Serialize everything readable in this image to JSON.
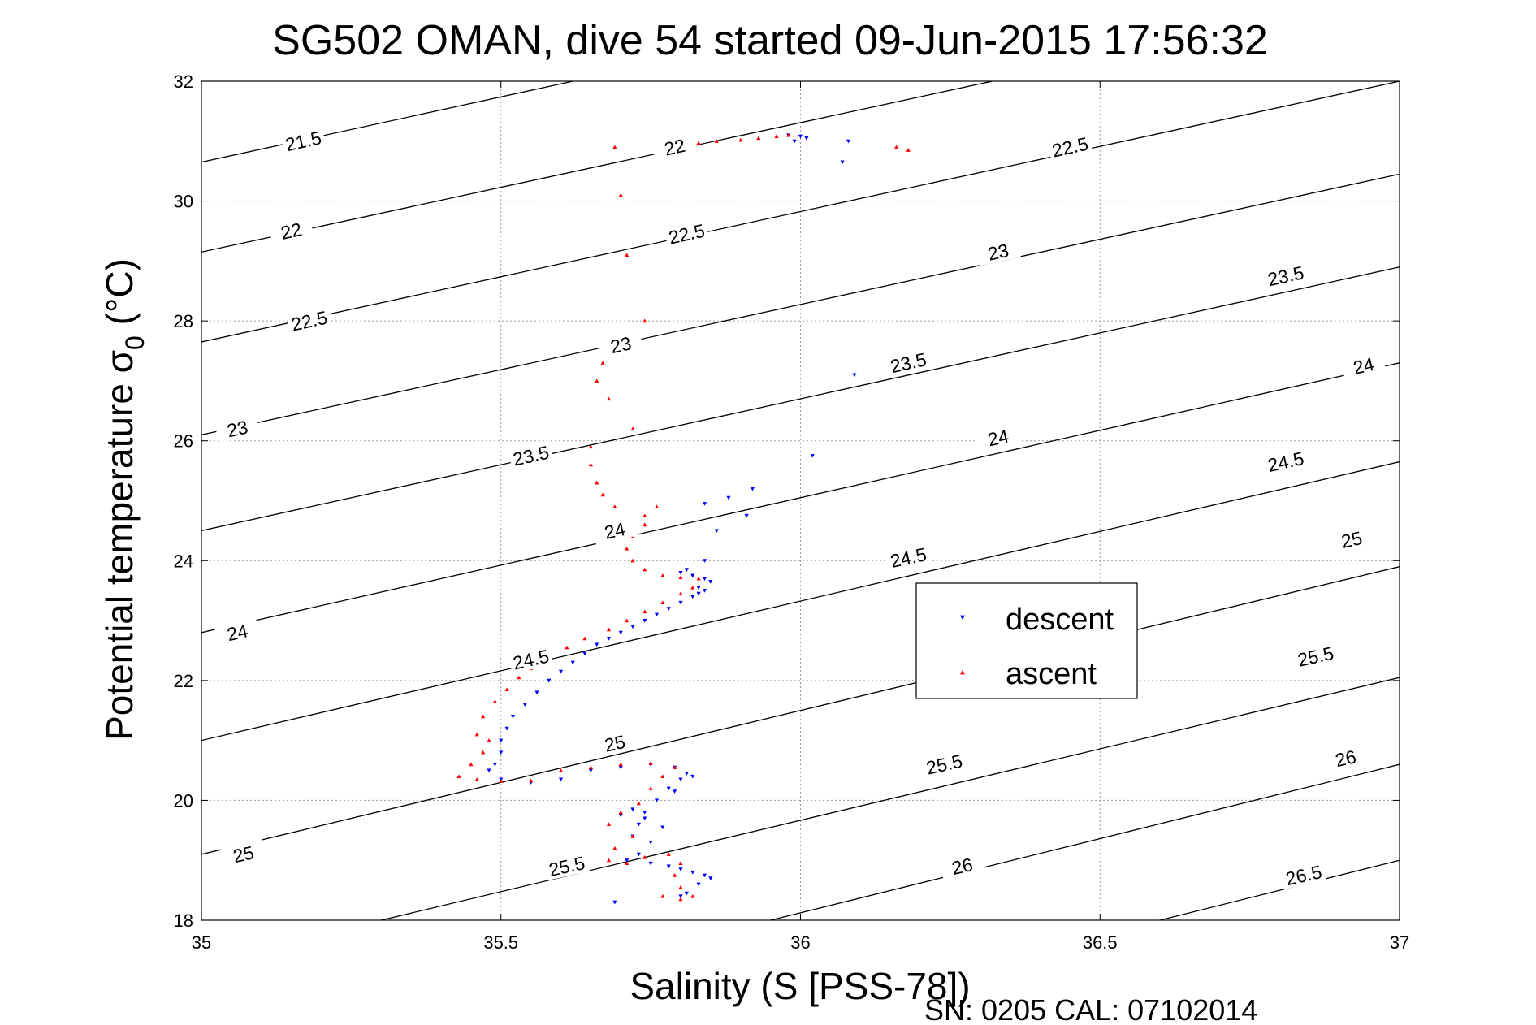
{
  "chart_data": {
    "type": "scatter",
    "title": "SG502 OMAN, dive 54 started 09-Jun-2015 17:56:32",
    "xlabel": "Salinity (S [PSS-78])",
    "ylabel_main": "Potential temperature σ",
    "ylabel_sub": "0",
    "ylabel_unit": "(°C)",
    "xlim": [
      35,
      37
    ],
    "ylim": [
      18,
      32
    ],
    "x_ticks": [
      "35",
      "35.5",
      "36",
      "36.5",
      "37"
    ],
    "y_ticks": [
      "18",
      "20",
      "22",
      "24",
      "26",
      "28",
      "30",
      "32"
    ],
    "grid": true,
    "legend_position": "center-right",
    "footer": "SN: 0205  CAL: 07102014",
    "contours": [
      {
        "label": "21.5",
        "points": [
          [
            35.0,
            30.65
          ],
          [
            35.62,
            32.0
          ]
        ]
      },
      {
        "label": "22",
        "points": [
          [
            35.0,
            29.15
          ],
          [
            36.32,
            32.0
          ]
        ]
      },
      {
        "label": "22.5",
        "points": [
          [
            35.0,
            27.65
          ],
          [
            37.0,
            32.0
          ]
        ]
      },
      {
        "label": "23",
        "points": [
          [
            35.0,
            26.1
          ],
          [
            37.0,
            30.45
          ]
        ]
      },
      {
        "label": "23.5",
        "points": [
          [
            35.0,
            24.5
          ],
          [
            37.0,
            28.9
          ]
        ]
      },
      {
        "label": "24",
        "points": [
          [
            35.0,
            22.8
          ],
          [
            37.0,
            27.3
          ]
        ]
      },
      {
        "label": "24.5",
        "points": [
          [
            35.0,
            21.0
          ],
          [
            37.0,
            25.65
          ]
        ]
      },
      {
        "label": "25",
        "points": [
          [
            35.0,
            19.1
          ],
          [
            37.0,
            23.9
          ]
        ]
      },
      {
        "label": "25.5",
        "points": [
          [
            35.3,
            18.0
          ],
          [
            37.0,
            22.05
          ]
        ]
      },
      {
        "label": "26",
        "points": [
          [
            35.95,
            18.0
          ],
          [
            37.0,
            20.6
          ]
        ]
      },
      {
        "label": "26.5",
        "points": [
          [
            36.6,
            18.0
          ],
          [
            37.0,
            19.0
          ]
        ]
      }
    ],
    "contour_labels": [
      {
        "text": "21.5",
        "x": 35.17,
        "y": 31.0
      },
      {
        "text": "22",
        "x": 35.79,
        "y": 30.9
      },
      {
        "text": "22.5",
        "x": 36.45,
        "y": 30.9
      },
      {
        "text": "22",
        "x": 35.15,
        "y": 29.5
      },
      {
        "text": "22.5",
        "x": 35.81,
        "y": 29.45
      },
      {
        "text": "23",
        "x": 36.33,
        "y": 29.15
      },
      {
        "text": "23.5",
        "x": 36.81,
        "y": 28.75
      },
      {
        "text": "22.5",
        "x": 35.18,
        "y": 28.0
      },
      {
        "text": "23",
        "x": 35.7,
        "y": 27.6
      },
      {
        "text": "23.5",
        "x": 36.18,
        "y": 27.3
      },
      {
        "text": "24",
        "x": 36.94,
        "y": 27.25
      },
      {
        "text": "23",
        "x": 35.06,
        "y": 26.2
      },
      {
        "text": "23.5",
        "x": 35.55,
        "y": 25.75
      },
      {
        "text": "24",
        "x": 36.33,
        "y": 26.05
      },
      {
        "text": "24.5",
        "x": 36.81,
        "y": 25.65
      },
      {
        "text": "24",
        "x": 35.69,
        "y": 24.5
      },
      {
        "text": "24.5",
        "x": 36.18,
        "y": 24.05
      },
      {
        "text": "25",
        "x": 36.92,
        "y": 24.35
      },
      {
        "text": "24",
        "x": 35.06,
        "y": 22.8
      },
      {
        "text": "24.5",
        "x": 35.55,
        "y": 22.35
      },
      {
        "text": "25.5",
        "x": 36.86,
        "y": 22.4
      },
      {
        "text": "25",
        "x": 35.69,
        "y": 20.95
      },
      {
        "text": "25.5",
        "x": 36.24,
        "y": 20.6
      },
      {
        "text": "26",
        "x": 36.91,
        "y": 20.7
      },
      {
        "text": "25",
        "x": 35.07,
        "y": 19.1
      },
      {
        "text": "25.5",
        "x": 35.61,
        "y": 18.9
      },
      {
        "text": "26",
        "x": 36.27,
        "y": 18.9
      },
      {
        "text": "26.5",
        "x": 36.84,
        "y": 18.75
      }
    ],
    "series": [
      {
        "name": "descent",
        "color": "#0000ff",
        "marker": "triangle-down",
        "points": [
          [
            35.98,
            31.1
          ],
          [
            36.0,
            31.08
          ],
          [
            36.01,
            31.05
          ],
          [
            35.99,
            31.0
          ],
          [
            36.08,
            31.0
          ],
          [
            36.07,
            30.65
          ],
          [
            36.09,
            27.1
          ],
          [
            36.02,
            25.75
          ],
          [
            35.92,
            25.2
          ],
          [
            35.88,
            25.05
          ],
          [
            35.84,
            24.95
          ],
          [
            35.91,
            24.75
          ],
          [
            35.86,
            24.5
          ],
          [
            35.84,
            24.0
          ],
          [
            35.81,
            23.85
          ],
          [
            35.8,
            23.8
          ],
          [
            35.82,
            23.75
          ],
          [
            35.84,
            23.7
          ],
          [
            35.85,
            23.65
          ],
          [
            35.83,
            23.55
          ],
          [
            35.84,
            23.5
          ],
          [
            35.83,
            23.45
          ],
          [
            35.82,
            23.4
          ],
          [
            35.8,
            23.3
          ],
          [
            35.78,
            23.2
          ],
          [
            35.76,
            23.1
          ],
          [
            35.74,
            23.0
          ],
          [
            35.72,
            22.9
          ],
          [
            35.7,
            22.8
          ],
          [
            35.68,
            22.7
          ],
          [
            35.66,
            22.6
          ],
          [
            35.64,
            22.45
          ],
          [
            35.62,
            22.3
          ],
          [
            35.6,
            22.15
          ],
          [
            35.58,
            22.0
          ],
          [
            35.56,
            21.8
          ],
          [
            35.54,
            21.6
          ],
          [
            35.52,
            21.4
          ],
          [
            35.51,
            21.2
          ],
          [
            35.5,
            21.0
          ],
          [
            35.5,
            20.8
          ],
          [
            35.49,
            20.6
          ],
          [
            35.48,
            20.5
          ],
          [
            35.5,
            20.35
          ],
          [
            35.55,
            20.3
          ],
          [
            35.6,
            20.35
          ],
          [
            35.65,
            20.5
          ],
          [
            35.7,
            20.55
          ],
          [
            35.75,
            20.6
          ],
          [
            35.79,
            20.55
          ],
          [
            35.81,
            20.45
          ],
          [
            35.8,
            20.35
          ],
          [
            35.78,
            20.2
          ],
          [
            35.76,
            20.0
          ],
          [
            35.74,
            19.8
          ],
          [
            35.73,
            19.6
          ],
          [
            35.72,
            19.4
          ],
          [
            35.75,
            19.3
          ],
          [
            35.73,
            19.1
          ],
          [
            35.75,
            18.95
          ],
          [
            35.78,
            18.9
          ],
          [
            35.8,
            18.85
          ],
          [
            35.82,
            18.8
          ],
          [
            35.84,
            18.75
          ],
          [
            35.85,
            18.7
          ],
          [
            35.83,
            18.6
          ],
          [
            35.81,
            18.45
          ],
          [
            35.8,
            18.4
          ],
          [
            35.69,
            18.3
          ],
          [
            35.71,
            19.0
          ],
          [
            35.77,
            19.55
          ],
          [
            35.7,
            19.75
          ],
          [
            35.79,
            20.15
          ],
          [
            35.82,
            20.4
          ],
          [
            35.74,
            19.7
          ],
          [
            35.72,
            19.85
          ]
        ]
      },
      {
        "name": "ascent",
        "color": "#ff0000",
        "marker": "triangle-up",
        "points": [
          [
            35.69,
            30.9
          ],
          [
            35.8,
            30.95
          ],
          [
            35.83,
            30.97
          ],
          [
            35.86,
            31.0
          ],
          [
            35.9,
            31.02
          ],
          [
            35.93,
            31.05
          ],
          [
            35.96,
            31.08
          ],
          [
            35.98,
            31.1
          ],
          [
            36.16,
            30.9
          ],
          [
            36.18,
            30.85
          ],
          [
            35.7,
            30.1
          ],
          [
            35.71,
            29.1
          ],
          [
            35.74,
            28.0
          ],
          [
            35.7,
            27.6
          ],
          [
            35.67,
            27.3
          ],
          [
            35.66,
            27.0
          ],
          [
            35.68,
            26.7
          ],
          [
            35.72,
            26.2
          ],
          [
            35.65,
            25.9
          ],
          [
            35.65,
            25.6
          ],
          [
            35.66,
            25.3
          ],
          [
            35.67,
            25.1
          ],
          [
            35.69,
            24.9
          ],
          [
            35.71,
            24.7
          ],
          [
            35.74,
            24.75
          ],
          [
            35.76,
            24.9
          ],
          [
            35.74,
            24.6
          ],
          [
            35.72,
            24.4
          ],
          [
            35.71,
            24.2
          ],
          [
            35.72,
            24.0
          ],
          [
            35.74,
            23.85
          ],
          [
            35.77,
            23.75
          ],
          [
            35.8,
            23.72
          ],
          [
            35.83,
            23.7
          ],
          [
            35.82,
            23.55
          ],
          [
            35.8,
            23.45
          ],
          [
            35.77,
            23.3
          ],
          [
            35.74,
            23.15
          ],
          [
            35.71,
            23.0
          ],
          [
            35.68,
            22.85
          ],
          [
            35.64,
            22.7
          ],
          [
            35.61,
            22.55
          ],
          [
            35.58,
            22.4
          ],
          [
            35.55,
            22.2
          ],
          [
            35.53,
            22.05
          ],
          [
            35.51,
            21.85
          ],
          [
            35.49,
            21.65
          ],
          [
            35.47,
            21.4
          ],
          [
            35.46,
            21.1
          ],
          [
            35.48,
            21.0
          ],
          [
            35.47,
            20.8
          ],
          [
            35.45,
            20.6
          ],
          [
            35.43,
            20.4
          ],
          [
            35.46,
            20.35
          ],
          [
            35.5,
            20.32
          ],
          [
            35.55,
            20.33
          ],
          [
            35.6,
            20.5
          ],
          [
            35.65,
            20.55
          ],
          [
            35.7,
            20.6
          ],
          [
            35.75,
            20.62
          ],
          [
            35.79,
            20.55
          ],
          [
            35.77,
            20.4
          ],
          [
            35.75,
            20.2
          ],
          [
            35.73,
            19.95
          ],
          [
            35.7,
            19.8
          ],
          [
            35.68,
            19.6
          ],
          [
            35.72,
            19.4
          ],
          [
            35.69,
            19.2
          ],
          [
            35.68,
            19.0
          ],
          [
            35.71,
            18.95
          ],
          [
            35.74,
            19.05
          ],
          [
            35.78,
            19.1
          ],
          [
            35.8,
            18.95
          ],
          [
            35.79,
            18.75
          ],
          [
            35.8,
            18.55
          ],
          [
            35.82,
            18.4
          ],
          [
            35.8,
            18.35
          ],
          [
            35.77,
            18.4
          ]
        ]
      }
    ]
  }
}
